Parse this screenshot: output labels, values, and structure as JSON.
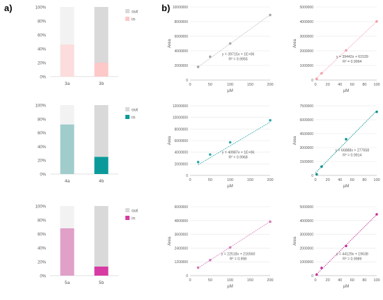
{
  "panel_labels": {
    "a": "a)",
    "b": "b)"
  },
  "chart_data": [
    {
      "id": "a1",
      "type": "bar",
      "stacked": true,
      "categories": [
        "3a",
        "3b"
      ],
      "series": [
        {
          "name": "in",
          "values": [
            46,
            20
          ]
        },
        {
          "name": "out",
          "values": [
            54,
            80
          ]
        }
      ],
      "colors": {
        "in": [
          "#fcdcdc",
          "#fcc8c8"
        ],
        "out": [
          "#f2f2f2",
          "#d9d9d9"
        ]
      },
      "ylim": [
        0,
        100
      ],
      "yticks": [
        "0%",
        "20%",
        "40%",
        "60%",
        "80%",
        "100%"
      ],
      "legend": "right",
      "grid": false
    },
    {
      "id": "a2",
      "type": "bar",
      "stacked": true,
      "categories": [
        "4a",
        "4b"
      ],
      "series": [
        {
          "name": "in",
          "values": [
            72,
            25
          ]
        },
        {
          "name": "out",
          "values": [
            28,
            75
          ]
        }
      ],
      "colors": {
        "in": [
          "#a0cccc",
          "#0a9a9a"
        ],
        "out": [
          "#f2f2f2",
          "#d9d9d9"
        ]
      },
      "ylim": [
        0,
        100
      ],
      "yticks": [
        "0%",
        "20%",
        "40%",
        "60%",
        "80%",
        "100%"
      ],
      "legend": "right",
      "grid": false
    },
    {
      "id": "a3",
      "type": "bar",
      "stacked": true,
      "categories": [
        "5a",
        "5b"
      ],
      "series": [
        {
          "name": "in",
          "values": [
            68,
            13
          ]
        },
        {
          "name": "out",
          "values": [
            32,
            87
          ]
        }
      ],
      "colors": {
        "in": [
          "#e0a0c8",
          "#d63aa3"
        ],
        "out": [
          "#f2f2f2",
          "#d9d9d9"
        ]
      },
      "ylim": [
        0,
        100
      ],
      "yticks": [
        "0%",
        "20%",
        "40%",
        "60%",
        "80%",
        "100%"
      ],
      "legend": "right",
      "grid": false
    },
    {
      "id": "b1",
      "type": "scatter",
      "xlabel": "µM",
      "ylabel": "Area",
      "color": "#bfbfbf",
      "marker": "#a6a6a6",
      "xlim": [
        0,
        200
      ],
      "xticks": [
        0,
        50,
        100,
        150,
        200
      ],
      "ylim": [
        0,
        10000000
      ],
      "yticks": [
        0,
        2000000,
        4000000,
        6000000,
        8000000,
        10000000
      ],
      "x": [
        20,
        50,
        100,
        200
      ],
      "y": [
        1800000,
        3200000,
        5000000,
        8900000
      ],
      "trend": {
        "x": [
          20,
          200
        ],
        "y": [
          1794300,
          8943000
        ]
      },
      "equation": "y = 39715x + 1E+06",
      "r2": "R² = 0.9955",
      "eq_pos": [
        120,
        3400000
      ]
    },
    {
      "id": "b2",
      "type": "scatter",
      "xlabel": "µM",
      "ylabel": "Area",
      "color": "#f4a6b0",
      "marker": "#f0a0aa",
      "xlim": [
        0,
        100
      ],
      "xticks": [
        0,
        20,
        40,
        60,
        80,
        100
      ],
      "ylim": [
        0,
        5000000
      ],
      "yticks": [
        0,
        1000000,
        2000000,
        3000000,
        4000000,
        5000000
      ],
      "x": [
        2,
        10,
        50,
        100
      ],
      "y": [
        80000,
        460000,
        2030000,
        4010000
      ],
      "trend": {
        "x": [
          0,
          100
        ],
        "y": [
          61539,
          4005739
        ]
      },
      "equation": "y = 39442x + 61539",
      "r2": "R² = 0.9994",
      "eq_pos": [
        60,
        1530000
      ]
    },
    {
      "id": "b3",
      "type": "scatter",
      "xlabel": "µM",
      "ylabel": "Area",
      "color": "#2aa6a6",
      "marker": "#2aa6a6",
      "xlim": [
        0,
        200
      ],
      "xticks": [
        0,
        50,
        100,
        150,
        200
      ],
      "ylim": [
        0,
        12000000
      ],
      "yticks": [
        0,
        2000000,
        4000000,
        6000000,
        8000000,
        10000000,
        12000000
      ],
      "x": [
        20,
        50,
        100,
        200
      ],
      "y": [
        2300000,
        3600000,
        5700000,
        9500000
      ],
      "trend": {
        "x": [
          20,
          200
        ],
        "y": [
          1819740,
          9197400
        ]
      },
      "equation": "y = 40987x + 1E+06",
      "r2": "R² = 0.9968",
      "eq_pos": [
        120,
        3800000
      ]
    },
    {
      "id": "b4",
      "type": "scatter",
      "xlabel": "µM",
      "ylabel": "Area",
      "color": "#0a8f8f",
      "marker": "#0a8f8f",
      "xlim": [
        0,
        100
      ],
      "xticks": [
        0,
        20,
        40,
        60,
        80,
        100
      ],
      "ylim": [
        0,
        7500000
      ],
      "yticks": [
        0,
        1500000,
        3000000,
        4500000,
        6000000,
        7500000
      ],
      "x": [
        2,
        10,
        50,
        100
      ],
      "y": [
        120000,
        950000,
        3900000,
        6850000
      ],
      "trend": {
        "x": [
          0,
          100
        ],
        "y": [
          277658,
          6966458
        ]
      },
      "equation": "y = 66888x + 277658",
      "r2": "R² = 0.9914",
      "eq_pos": [
        60,
        2600000
      ]
    },
    {
      "id": "b5",
      "type": "scatter",
      "xlabel": "µM",
      "ylabel": "Area",
      "color": "#d27bb8",
      "marker": "#d27bb8",
      "xlim": [
        0,
        200
      ],
      "xticks": [
        0,
        50,
        100,
        150,
        200
      ],
      "ylim": [
        0,
        6000000
      ],
      "yticks": [
        0,
        1200000,
        2400000,
        3600000,
        4800000,
        6000000
      ],
      "x": [
        20,
        50,
        100,
        200
      ],
      "y": [
        700000,
        1350000,
        2450000,
        4700000
      ],
      "trend": {
        "x": [
          20,
          200
        ],
        "y": [
          666920,
          4720160
        ]
      },
      "equation": "y = 22518x + 216560",
      "r2": "R² = 0.998",
      "eq_pos": [
        120,
        1800000
      ]
    },
    {
      "id": "b6",
      "type": "scatter",
      "xlabel": "µM",
      "ylabel": "Area",
      "color": "#c0339a",
      "marker": "#c0339a",
      "xlim": [
        0,
        100
      ],
      "xticks": [
        0,
        20,
        40,
        60,
        80,
        100
      ],
      "ylim": [
        0,
        5000000
      ],
      "yticks": [
        0,
        1000000,
        2000000,
        3000000,
        4000000,
        5000000
      ],
      "x": [
        2,
        10,
        50,
        100
      ],
      "y": [
        80000,
        560000,
        2150000,
        4450000
      ],
      "trend": {
        "x": [
          0,
          100
        ],
        "y": [
          19638,
          4432538
        ]
      },
      "equation": "y = 44129x + 19638",
      "r2": "R² = 0.9989",
      "eq_pos": [
        60,
        1500000
      ]
    }
  ]
}
